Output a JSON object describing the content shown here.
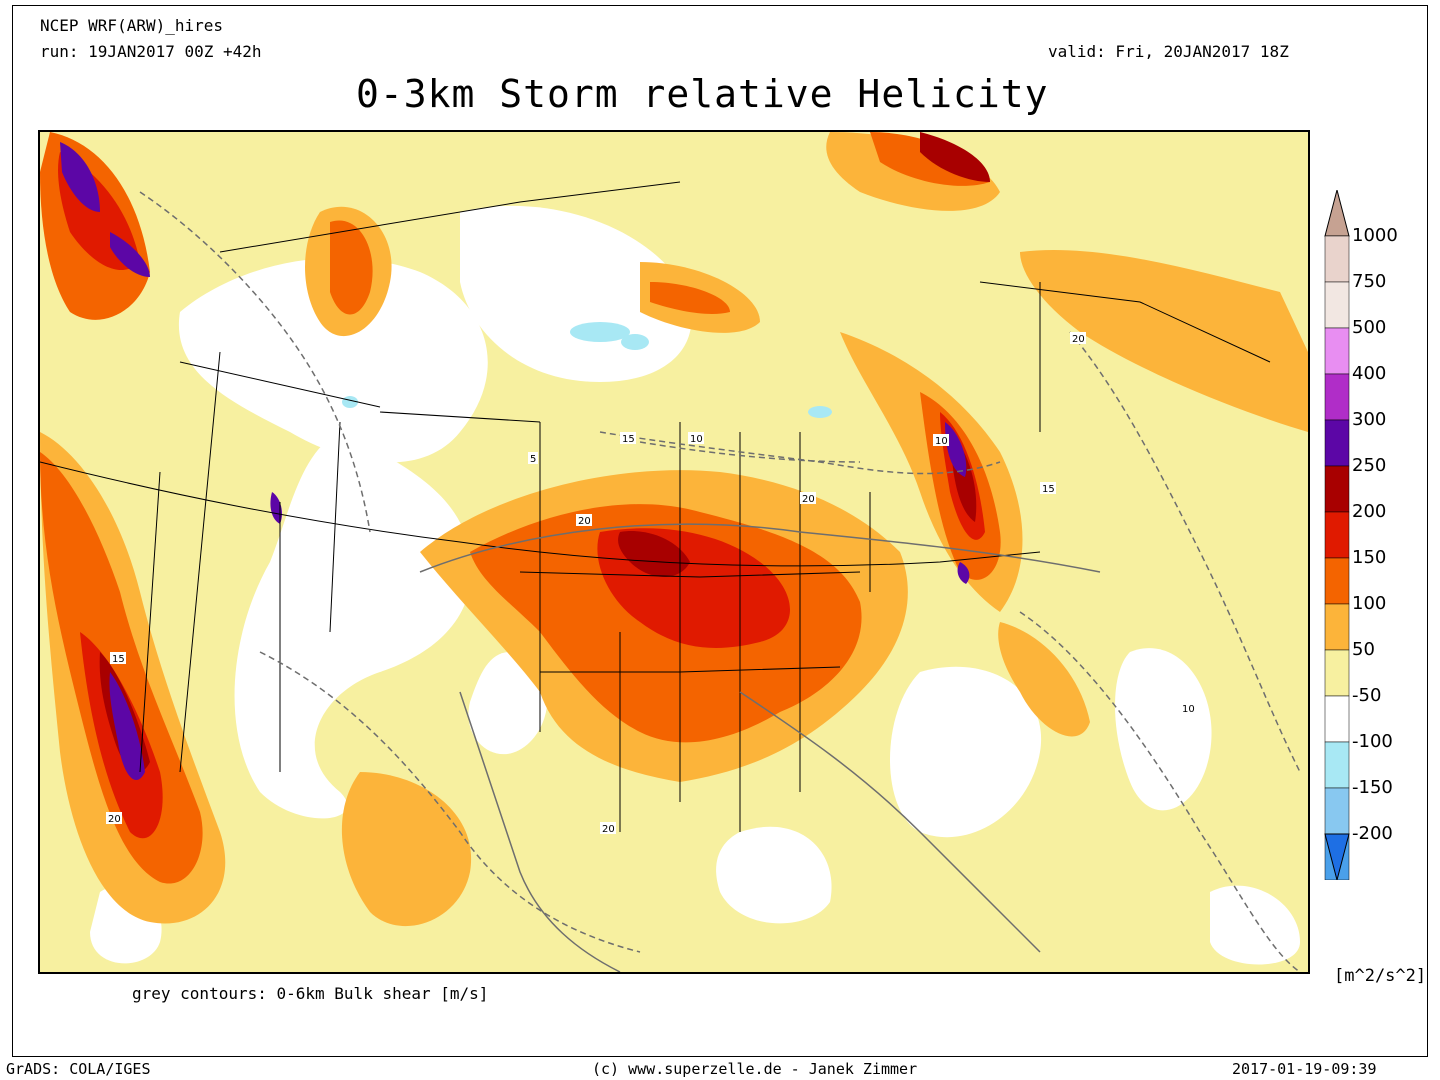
{
  "header": {
    "model": "NCEP WRF(ARW)_hires",
    "run": "run: 19JAN2017 00Z +42h",
    "valid": "valid: Fri, 20JAN2017 18Z",
    "title": "0-3km Storm relative Helicity"
  },
  "map": {
    "region": "Continental United States",
    "field": "0-3km Storm relative Helicity",
    "overlay_note": "grey contours: 0-6km Bulk shear [m/s]",
    "contour_labels": [
      "5",
      "10",
      "15",
      "20"
    ]
  },
  "colorbar": {
    "unit": "[m^2/s^2]",
    "levels": [
      {
        "value": "1000",
        "color": "#e9d3cc"
      },
      {
        "value": "750",
        "color": "#f2e7e2"
      },
      {
        "value": "500",
        "color": "#e88ef2"
      },
      {
        "value": "400",
        "color": "#b02dc8"
      },
      {
        "value": "300",
        "color": "#5c06a6"
      },
      {
        "value": "250",
        "color": "#a80000"
      },
      {
        "value": "200",
        "color": "#e01a00"
      },
      {
        "value": "150",
        "color": "#f46400"
      },
      {
        "value": "100",
        "color": "#fcb43a"
      },
      {
        "value": "50",
        "color": "#f7f0a0"
      },
      {
        "value": "-50",
        "color": "#ffffff"
      },
      {
        "value": "-100",
        "color": "#a8e8f4"
      },
      {
        "value": "-150",
        "color": "#88c8f0"
      },
      {
        "value": "-200",
        "color": "#4aa0ea"
      }
    ],
    "top_triangle_color": "#c6a292",
    "bottom_triangle_color": "#1e6fe4"
  },
  "footer": {
    "left": "GrADS: COLA/IGES",
    "center": "(c) www.superzelle.de - Janek Zimmer",
    "right": "2017-01-19-09:39"
  }
}
